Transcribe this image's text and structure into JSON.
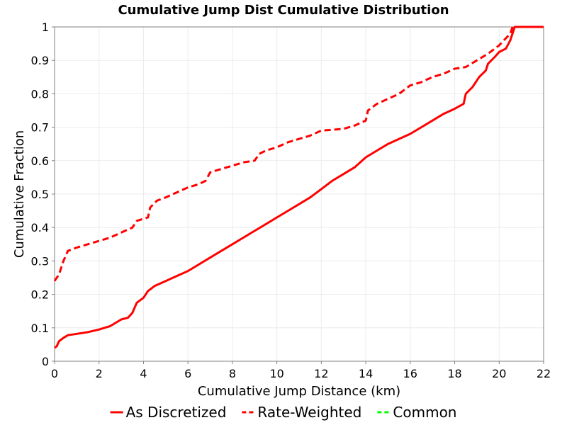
{
  "chart_data": {
    "type": "line",
    "title": "Cumulative Jump Dist Cumulative Distribution",
    "xlabel": "Cumulative Jump Distance (km)",
    "ylabel": "Cumulative Fraction",
    "xlim": [
      0,
      22
    ],
    "ylim": [
      0,
      1
    ],
    "xticks": [
      0,
      2,
      4,
      6,
      8,
      10,
      12,
      14,
      16,
      18,
      20,
      22
    ],
    "yticks": [
      0,
      0.1,
      0.2,
      0.3,
      0.4,
      0.5,
      0.6,
      0.7,
      0.8,
      0.9,
      1
    ],
    "grid": true,
    "legend_position": "bottom",
    "series": [
      {
        "name": "As Discretized",
        "color": "#ff0000",
        "dash": "solid",
        "points": [
          [
            0,
            0.04
          ],
          [
            0.1,
            0.045
          ],
          [
            0.2,
            0.06
          ],
          [
            0.4,
            0.07
          ],
          [
            0.6,
            0.078
          ],
          [
            1,
            0.082
          ],
          [
            1.5,
            0.087
          ],
          [
            2,
            0.095
          ],
          [
            2.5,
            0.105
          ],
          [
            3,
            0.125
          ],
          [
            3.3,
            0.13
          ],
          [
            3.5,
            0.145
          ],
          [
            3.7,
            0.175
          ],
          [
            4,
            0.19
          ],
          [
            4.2,
            0.21
          ],
          [
            4.5,
            0.225
          ],
          [
            5,
            0.24
          ],
          [
            5.5,
            0.255
          ],
          [
            6,
            0.27
          ],
          [
            6.5,
            0.29
          ],
          [
            7,
            0.31
          ],
          [
            7.5,
            0.33
          ],
          [
            8,
            0.35
          ],
          [
            8.5,
            0.37
          ],
          [
            9,
            0.39
          ],
          [
            9.5,
            0.41
          ],
          [
            10,
            0.43
          ],
          [
            10.5,
            0.45
          ],
          [
            11,
            0.47
          ],
          [
            11.5,
            0.49
          ],
          [
            12,
            0.515
          ],
          [
            12.5,
            0.54
          ],
          [
            13,
            0.56
          ],
          [
            13.5,
            0.58
          ],
          [
            14,
            0.61
          ],
          [
            14.5,
            0.63
          ],
          [
            15,
            0.65
          ],
          [
            15.5,
            0.665
          ],
          [
            16,
            0.68
          ],
          [
            16.5,
            0.7
          ],
          [
            17,
            0.72
          ],
          [
            17.5,
            0.74
          ],
          [
            18,
            0.755
          ],
          [
            18.4,
            0.77
          ],
          [
            18.5,
            0.8
          ],
          [
            18.8,
            0.82
          ],
          [
            19.1,
            0.85
          ],
          [
            19.4,
            0.87
          ],
          [
            19.5,
            0.89
          ],
          [
            19.8,
            0.91
          ],
          [
            20,
            0.925
          ],
          [
            20.3,
            0.935
          ],
          [
            20.5,
            0.96
          ],
          [
            20.7,
            1
          ],
          [
            22,
            1
          ]
        ]
      },
      {
        "name": "Rate-Weighted",
        "color": "#ff0000",
        "dash": "dashed",
        "points": [
          [
            0,
            0.24
          ],
          [
            0.2,
            0.26
          ],
          [
            0.4,
            0.3
          ],
          [
            0.6,
            0.33
          ],
          [
            1,
            0.34
          ],
          [
            1.5,
            0.35
          ],
          [
            2,
            0.36
          ],
          [
            2.5,
            0.37
          ],
          [
            3,
            0.385
          ],
          [
            3.5,
            0.4
          ],
          [
            3.7,
            0.42
          ],
          [
            4.2,
            0.43
          ],
          [
            4.3,
            0.46
          ],
          [
            4.6,
            0.48
          ],
          [
            5,
            0.49
          ],
          [
            5.5,
            0.505
          ],
          [
            6,
            0.52
          ],
          [
            6.5,
            0.53
          ],
          [
            6.8,
            0.54
          ],
          [
            7,
            0.565
          ],
          [
            7.5,
            0.575
          ],
          [
            8,
            0.585
          ],
          [
            8.5,
            0.595
          ],
          [
            9,
            0.6
          ],
          [
            9.2,
            0.62
          ],
          [
            9.5,
            0.63
          ],
          [
            10,
            0.64
          ],
          [
            10.5,
            0.655
          ],
          [
            11,
            0.665
          ],
          [
            11.5,
            0.675
          ],
          [
            12,
            0.69
          ],
          [
            13,
            0.695
          ],
          [
            13.5,
            0.705
          ],
          [
            14,
            0.72
          ],
          [
            14.1,
            0.75
          ],
          [
            14.5,
            0.77
          ],
          [
            15,
            0.785
          ],
          [
            15.5,
            0.8
          ],
          [
            16,
            0.825
          ],
          [
            16.5,
            0.835
          ],
          [
            17,
            0.85
          ],
          [
            17.5,
            0.86
          ],
          [
            18,
            0.875
          ],
          [
            18.5,
            0.88
          ],
          [
            19,
            0.9
          ],
          [
            19.5,
            0.92
          ],
          [
            20,
            0.945
          ],
          [
            20.5,
            0.98
          ],
          [
            20.6,
            1
          ],
          [
            22,
            1
          ]
        ]
      },
      {
        "name": "Common",
        "color": "#00ff00",
        "dash": "dashed",
        "points": []
      }
    ]
  }
}
